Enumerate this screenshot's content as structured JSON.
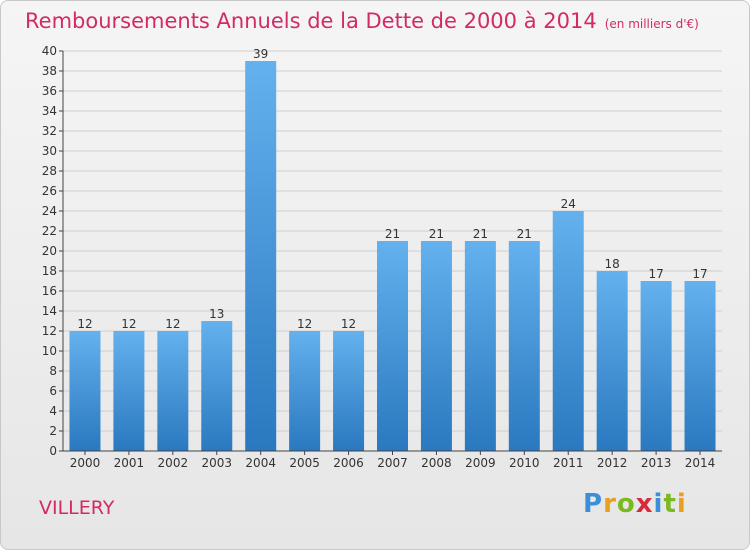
{
  "title": "Remboursements Annuels de la Dette de 2000 à 2014",
  "subtitle": "(en milliers d'€)",
  "commune": "VILLERY",
  "brand": {
    "letters": [
      "P",
      "r",
      "o",
      "x",
      "i",
      "t",
      "i"
    ],
    "colors": [
      "#3a8fd8",
      "#e8a020",
      "#7cb820",
      "#d82a3a",
      "#3a8fd8",
      "#7cb820",
      "#e8a020"
    ]
  },
  "colors": {
    "accent": "#d22a66",
    "bar_top": "#64b1ee",
    "bar_bottom": "#2a78bf"
  },
  "chart_data": {
    "type": "bar",
    "title": "Remboursements Annuels de la Dette de 2000 à 2014",
    "subtitle": "(en milliers d'€)",
    "categories": [
      "2000",
      "2001",
      "2002",
      "2003",
      "2004",
      "2005",
      "2006",
      "2007",
      "2008",
      "2009",
      "2010",
      "2011",
      "2012",
      "2013",
      "2014"
    ],
    "values": [
      12,
      12,
      12,
      13,
      39,
      12,
      12,
      21,
      21,
      21,
      21,
      24,
      18,
      17,
      17
    ],
    "ylim": [
      0,
      40
    ],
    "yticks": [
      0,
      2,
      4,
      6,
      8,
      10,
      12,
      14,
      16,
      18,
      20,
      22,
      24,
      26,
      28,
      30,
      32,
      34,
      36,
      38,
      40
    ],
    "grid": true,
    "data_labels": true
  }
}
